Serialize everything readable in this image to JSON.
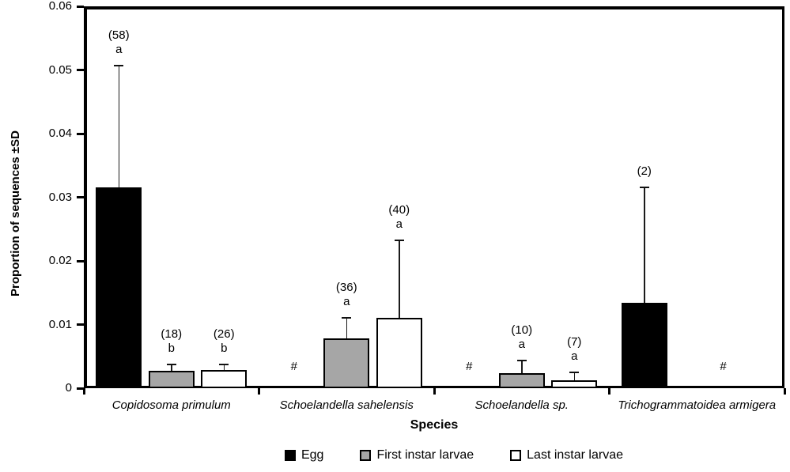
{
  "chart_data": {
    "type": "bar",
    "title": "",
    "xlabel": "Species",
    "ylabel": "Proportion of sequences ±SD",
    "ylim": [
      0,
      0.06
    ],
    "yticks": [
      "0",
      "0.01",
      "0.02",
      "0.03",
      "0.04",
      "0.05",
      "0.06"
    ],
    "grid": false,
    "legend_position": "bottom",
    "missing_marker": "#",
    "legend": [
      {
        "label": "Egg",
        "fill": "#000000",
        "border": "#000000"
      },
      {
        "label": "First instar larvae",
        "fill": "#a6a6a6",
        "border": "#000000"
      },
      {
        "label": "Last instar larvae",
        "fill": "#ffffff",
        "border": "#000000"
      }
    ],
    "groups": [
      {
        "species": "Copidosoma primulum",
        "bars": [
          {
            "series": "Egg",
            "value": 0.0315,
            "sd_top": 0.0505,
            "count_label": "(58)",
            "sig_letter": "a"
          },
          {
            "series": "First instar larvae",
            "value": 0.0027,
            "sd_top": 0.0036,
            "count_label": "(18)",
            "sig_letter": "b"
          },
          {
            "series": "Last instar larvae",
            "value": 0.0028,
            "sd_top": 0.0036,
            "count_label": "(26)",
            "sig_letter": "b"
          }
        ]
      },
      {
        "species": "Schoelandella sahelensis",
        "bars": [
          {
            "series": "Egg",
            "value": null,
            "marker": "#"
          },
          {
            "series": "First instar larvae",
            "value": 0.0078,
            "sd_top": 0.0109,
            "count_label": "(36)",
            "sig_letter": "a"
          },
          {
            "series": "Last instar larvae",
            "value": 0.011,
            "sd_top": 0.0231,
            "count_label": "(40)",
            "sig_letter": "a"
          }
        ]
      },
      {
        "species": "Schoelandella sp.",
        "bars": [
          {
            "series": "Egg",
            "value": null,
            "marker": "#"
          },
          {
            "series": "First instar larvae",
            "value": 0.0024,
            "sd_top": 0.0042,
            "count_label": "(10)",
            "sig_letter": "a"
          },
          {
            "series": "Last instar larvae",
            "value": 0.0013,
            "sd_top": 0.0023,
            "count_label": "(7)",
            "sig_letter": "a"
          }
        ]
      },
      {
        "species": "Trichogrammatoidea armigera",
        "bars": [
          {
            "series": "Egg",
            "value": 0.0134,
            "sd_top": 0.0314,
            "count_label": "(2)",
            "sig_letter": ""
          },
          {
            "series": "First instar larvae",
            "value": null,
            "marker": "#"
          },
          {
            "series": "Last instar larvae",
            "value": null
          }
        ]
      }
    ]
  }
}
